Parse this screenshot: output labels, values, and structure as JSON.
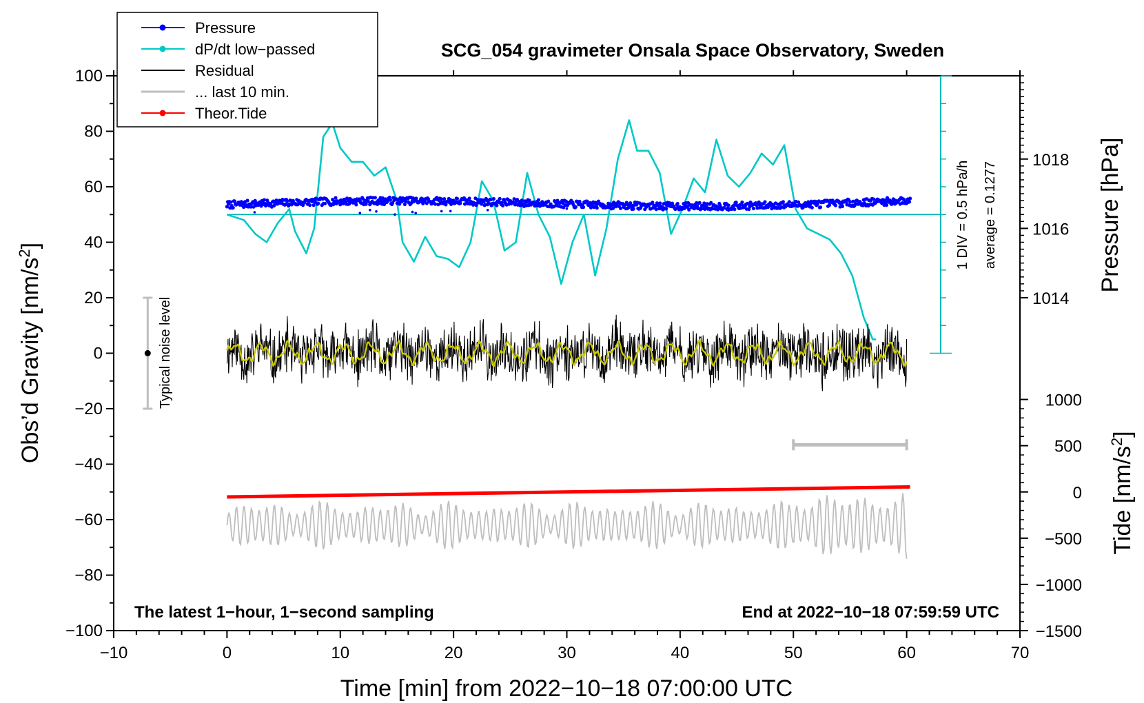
{
  "chart_data": {
    "type": "line",
    "title": "SCG_054 gravimeter Onsala Space Observatory, Sweden",
    "xlabel": "Time [min] from 2022−10−18 07:00:00 UTC",
    "ylabel": "Obs’d Gravity [nm/s",
    "ylabel_sup": "2",
    "ylabel_close": "]",
    "right_top_label": "Pressure [hPa]",
    "right_bottom_label": "Tide [nm/s",
    "right_bottom_label_sup": "2",
    "right_bottom_label_close": "]",
    "xlim": [
      -10,
      70
    ],
    "ylim": [
      -100,
      100
    ],
    "x_ticks": [
      -10,
      0,
      10,
      20,
      30,
      40,
      50,
      60,
      70
    ],
    "x_tick_labels": [
      "−10",
      "0",
      "10",
      "20",
      "30",
      "40",
      "50",
      "60",
      "70"
    ],
    "y_ticks": [
      -100,
      -80,
      -60,
      -40,
      -20,
      0,
      20,
      40,
      60,
      80,
      100
    ],
    "y_tick_labels": [
      "−100",
      "−80",
      "−60",
      "−40",
      "−20",
      "0",
      "20",
      "40",
      "60",
      "80",
      "100"
    ],
    "pressure_axis": {
      "ticks": [
        1014,
        1016,
        1018
      ],
      "tick_labels": [
        "1014",
        "1016",
        "1018"
      ],
      "gravity_equivalent": [
        20,
        45,
        70
      ]
    },
    "tide_axis": {
      "ticks": [
        -1500,
        -1000,
        -500,
        0,
        500,
        1000
      ],
      "tick_labels": [
        "−1500",
        "−1000",
        "−500",
        "0",
        "500",
        "1000"
      ],
      "gravity_equivalent": [
        -100,
        -83.33,
        -66.67,
        -50,
        -33.33,
        -16.67
      ]
    },
    "legend": [
      {
        "name": "Pressure",
        "color": "#0000ff",
        "marker": true
      },
      {
        "name": "dP/dt low−passed",
        "color": "#00c8c8",
        "marker": true
      },
      {
        "name": "Residual",
        "color": "#000000",
        "marker": false
      },
      {
        "name": "... last 10 min.",
        "color": "#bebebe",
        "marker": false
      },
      {
        "name": "Theor.Tide",
        "color": "#ff0000",
        "marker": true
      }
    ],
    "dpdt_scale_note": "1 DIV = 0.5 hPa/h",
    "average_note": "average = 0.1277",
    "noise_label": "Typical noise level",
    "noise_bar": {
      "x": -7,
      "center": 0,
      "low": -20,
      "high": 20
    },
    "last10_bar": {
      "x_start": 50,
      "x_end": 60,
      "y": -33
    },
    "bottom_left_note": "The latest 1−hour, 1−second sampling",
    "bottom_right_note": "End at 2022−10−18 07:59:59 UTC",
    "series": [
      {
        "name": "Pressure",
        "x_range": [
          0,
          60.3
        ],
        "gravity_level_start": 53.5,
        "gravity_level_end": 54.5
      },
      {
        "name": "Pressure baseline",
        "x_range": [
          0,
          63
        ],
        "y": 50
      },
      {
        "name": "dP/dt low−passed",
        "x": [
          0,
          1.5,
          2.5,
          3.5,
          4.5,
          5.5,
          6,
          7,
          7.7,
          8.5,
          9.3,
          10,
          11,
          12,
          13,
          14,
          15,
          15.5,
          16.5,
          17.5,
          18.5,
          19.5,
          20.5,
          21.5,
          22.5,
          23.5,
          24.5,
          25.5,
          26.5,
          27.5,
          28.5,
          29.5,
          30.5,
          31.5,
          32.5,
          33.5,
          34.5,
          35.5,
          36.2,
          37.2,
          38.2,
          39.2,
          40.2,
          41.2,
          42.2,
          43.2,
          44.2,
          45.2,
          46.2,
          47.2,
          48.2,
          49.2,
          50.2,
          51.2,
          52.2,
          53.2,
          54.2,
          55.2,
          56.2,
          57,
          57.3
        ],
        "y": [
          50,
          48,
          43,
          40,
          47,
          52,
          44,
          36,
          45,
          78,
          83,
          74,
          69,
          69,
          64,
          67,
          55,
          40,
          33,
          42,
          35,
          34,
          31,
          40,
          62,
          55,
          37,
          40,
          65,
          50,
          42,
          25,
          40,
          50,
          28,
          45,
          70,
          84,
          73,
          73,
          65,
          43,
          52,
          63,
          58,
          77,
          64,
          60,
          65,
          72,
          68,
          75,
          52,
          45,
          43,
          41,
          36,
          28,
          13,
          5,
          5
        ]
      },
      {
        "name": "Residual",
        "x_range": [
          0,
          60
        ],
        "y_center": 0,
        "y_amplitude": 10
      },
      {
        "name": "Residual smoothed",
        "x_range": [
          0,
          60
        ],
        "y_center": 0,
        "y_amplitude": 3,
        "color": "#c8c800"
      },
      {
        "name": "... last 10 min.",
        "x_range": [
          0,
          60
        ],
        "y_center": -62,
        "y_amplitude": 9
      },
      {
        "name": "Theor.Tide",
        "x": [
          0,
          60.3
        ],
        "y": [
          -51.8,
          -48.2
        ],
        "tide_values": [
          -27,
          27
        ]
      }
    ]
  }
}
